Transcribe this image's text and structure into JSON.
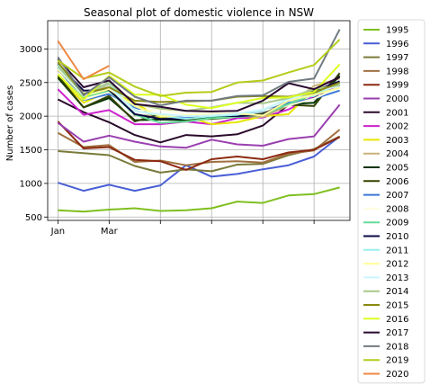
{
  "chart_data": {
    "type": "line",
    "title": "Seasonal plot of domestic violence in NSW",
    "xlabel": "",
    "ylabel": "Number of cases",
    "x": [
      1,
      2,
      3,
      4,
      5,
      6,
      7,
      8,
      9,
      10,
      11,
      12
    ],
    "xticks": [
      1,
      3,
      5,
      7,
      9,
      11
    ],
    "xtick_labels": [
      "Jan",
      "Mar",
      "",
      "",
      "",
      ""
    ],
    "xlim": [
      0.6,
      12.4
    ],
    "ylim": [
      450,
      3420
    ],
    "yticks": [
      500,
      1000,
      1500,
      2000,
      2500,
      3000
    ],
    "grid": true,
    "legend_placement": "right outside",
    "series": [
      {
        "name": "1995",
        "color": "#7fbf1f",
        "values": [
          600,
          580,
          610,
          630,
          590,
          600,
          630,
          730,
          710,
          820,
          840,
          940
        ]
      },
      {
        "name": "1996",
        "color": "#4a5fd6",
        "values": [
          1010,
          890,
          980,
          890,
          970,
          1270,
          1100,
          1140,
          1210,
          1270,
          1400,
          1700
        ]
      },
      {
        "name": "1997",
        "color": "#7a7a3a",
        "values": [
          1480,
          1450,
          1420,
          1260,
          1160,
          1210,
          1180,
          1280,
          1290,
          1420,
          1510,
          1700
        ]
      },
      {
        "name": "1998",
        "color": "#a07040",
        "values": [
          1750,
          1540,
          1570,
          1320,
          1340,
          1270,
          1320,
          1330,
          1310,
          1440,
          1490,
          1800
        ]
      },
      {
        "name": "1999",
        "color": "#8b2a10",
        "values": [
          1920,
          1520,
          1540,
          1350,
          1330,
          1200,
          1360,
          1400,
          1360,
          1460,
          1500,
          1690
        ]
      },
      {
        "name": "2000",
        "color": "#9a3fb0",
        "values": [
          1900,
          1620,
          1710,
          1620,
          1550,
          1530,
          1650,
          1580,
          1560,
          1660,
          1700,
          2170
        ]
      },
      {
        "name": "2001",
        "color": "#2a0a2a",
        "values": [
          2250,
          2060,
          1910,
          1720,
          1610,
          1720,
          1700,
          1730,
          1860,
          2170,
          2270,
          2600
        ]
      },
      {
        "name": "2002",
        "color": "#cc22cc",
        "values": [
          2400,
          2020,
          2090,
          1880,
          1880,
          1920,
          1880,
          1970,
          1980,
          2100,
          2300,
          2460
        ]
      },
      {
        "name": "2003",
        "color": "#e6e600",
        "values": [
          2590,
          2200,
          2370,
          2200,
          1970,
          2000,
          1880,
          1910,
          2000,
          2030,
          2400,
          2480
        ]
      },
      {
        "name": "2004",
        "color": "#c9b27a",
        "values": [
          2690,
          2290,
          2480,
          2010,
          2010,
          1940,
          1960,
          2000,
          1990,
          2160,
          2450,
          2560
        ]
      },
      {
        "name": "2005",
        "color": "#003300",
        "values": [
          2570,
          2130,
          2270,
          1940,
          1950,
          1940,
          1990,
          2000,
          2020,
          2180,
          2200,
          2600
        ]
      },
      {
        "name": "2006",
        "color": "#334400",
        "values": [
          2600,
          2130,
          2300,
          1920,
          2030,
          1950,
          1960,
          1990,
          2040,
          2170,
          2150,
          2640
        ]
      },
      {
        "name": "2007",
        "color": "#3a78d8",
        "values": [
          2710,
          2240,
          2330,
          2130,
          2000,
          1990,
          2010,
          2040,
          2070,
          2200,
          2260,
          2380
        ]
      },
      {
        "name": "2008",
        "color": "#fffde0",
        "values": [
          2640,
          2250,
          2360,
          2080,
          2100,
          2020,
          2060,
          2040,
          2080,
          2160,
          2260,
          2440
        ]
      },
      {
        "name": "2009",
        "color": "#66dd99",
        "values": [
          2730,
          2280,
          2380,
          2020,
          1900,
          1920,
          1970,
          1990,
          2020,
          2180,
          2330,
          2470
        ]
      },
      {
        "name": "2010",
        "color": "#0a0a44",
        "values": [
          2770,
          2380,
          2390,
          2030,
          1960,
          1960,
          2010,
          2000,
          2020,
          2230,
          2370,
          2520
        ]
      },
      {
        "name": "2011",
        "color": "#99eeee",
        "values": [
          2760,
          2330,
          2490,
          2080,
          2010,
          1960,
          2000,
          2020,
          2090,
          2260,
          2300,
          2490
        ]
      },
      {
        "name": "2012",
        "color": "#ffff99",
        "values": [
          2700,
          2300,
          2400,
          2150,
          2000,
          2010,
          2020,
          2040,
          2010,
          2230,
          2320,
          2420
        ]
      },
      {
        "name": "2013",
        "color": "#ccf5ff",
        "values": [
          2720,
          2310,
          2440,
          2070,
          2030,
          2000,
          2010,
          2040,
          2100,
          2250,
          2360,
          2450
        ]
      },
      {
        "name": "2014",
        "color": "#a8c88a",
        "values": [
          2740,
          2330,
          2500,
          2180,
          2110,
          2080,
          2130,
          2200,
          2190,
          2270,
          2400,
          2460
        ]
      },
      {
        "name": "2015",
        "color": "#8a8a10",
        "values": [
          2800,
          2330,
          2430,
          2230,
          2210,
          2220,
          2230,
          2290,
          2300,
          2290,
          2350,
          2500
        ]
      },
      {
        "name": "2016",
        "color": "#ddff22",
        "values": [
          2620,
          2250,
          2600,
          2320,
          2320,
          2170,
          2120,
          2200,
          2270,
          2280,
          2360,
          2770
        ]
      },
      {
        "name": "2017",
        "color": "#2a0a30",
        "values": [
          2850,
          2430,
          2530,
          2180,
          2140,
          2080,
          2070,
          2080,
          2230,
          2490,
          2400,
          2580
        ]
      },
      {
        "name": "2018",
        "color": "#707a80",
        "values": [
          2880,
          2310,
          2580,
          2290,
          2160,
          2230,
          2230,
          2300,
          2310,
          2510,
          2560,
          3290
        ]
      },
      {
        "name": "2019",
        "color": "#b5cc1a",
        "values": [
          2830,
          2560,
          2650,
          2440,
          2300,
          2350,
          2360,
          2500,
          2530,
          2650,
          2760,
          3140
        ]
      },
      {
        "name": "2020",
        "color": "#ee8844",
        "values": [
          3120,
          2550,
          2750,
          null,
          null,
          null,
          null,
          null,
          null,
          null,
          null,
          null
        ]
      }
    ]
  }
}
